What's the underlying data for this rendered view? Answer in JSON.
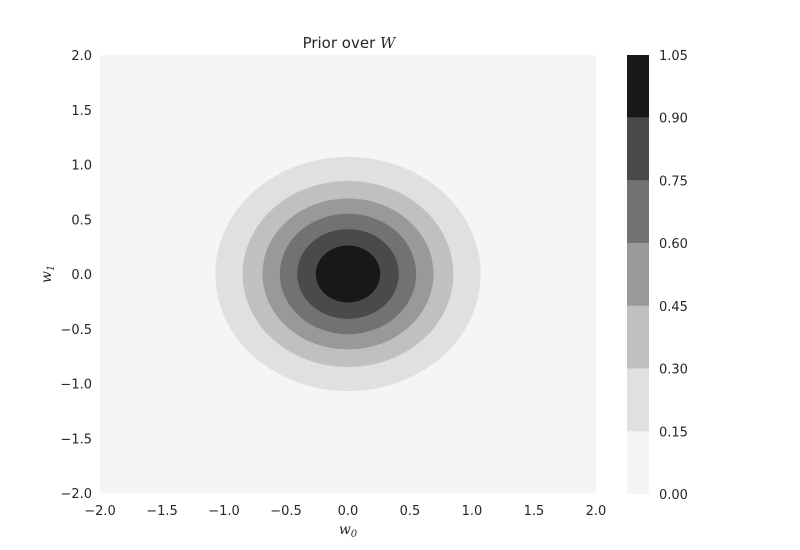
{
  "chart_data": {
    "type": "contourf",
    "title_text": "Prior over ",
    "title_math": "W",
    "xlabel": "w",
    "xlabel_sub": "0",
    "ylabel": "w",
    "ylabel_sub": "1",
    "xlim": [
      -2.0,
      2.0
    ],
    "ylim": [
      -2.0,
      2.0
    ],
    "x_ticks": [
      "−2.0",
      "−1.5",
      "−1.0",
      "−0.5",
      "0.0",
      "0.5",
      "1.0",
      "1.5",
      "2.0"
    ],
    "y_ticks": [
      "−2.0",
      "−1.5",
      "−1.0",
      "−0.5",
      "0.0",
      "0.5",
      "1.0",
      "1.5",
      "2.0"
    ],
    "x_tick_values": [
      -2.0,
      -1.5,
      -1.0,
      -0.5,
      0.0,
      0.5,
      1.0,
      1.5,
      2.0
    ],
    "y_tick_values": [
      -2.0,
      -1.5,
      -1.0,
      -0.5,
      0.0,
      0.5,
      1.0,
      1.5,
      2.0
    ],
    "contour_levels": [
      0.0,
      0.15,
      0.3,
      0.45,
      0.6,
      0.75,
      0.9,
      1.05
    ],
    "contour_colors": [
      "#f5f5f5",
      "#e0e0e0",
      "#c0c0c0",
      "#999999",
      "#727272",
      "#4a4a4a",
      "#181818"
    ],
    "contour_rings": [
      {
        "level": 0.15,
        "rx": 1.07,
        "ry": 1.07,
        "color": "#e0e0e0"
      },
      {
        "level": 0.3,
        "rx": 0.85,
        "ry": 0.85,
        "color": "#c0c0c0"
      },
      {
        "level": 0.45,
        "rx": 0.69,
        "ry": 0.69,
        "color": "#999999"
      },
      {
        "level": 0.6,
        "rx": 0.55,
        "ry": 0.55,
        "color": "#727272"
      },
      {
        "level": 0.75,
        "rx": 0.41,
        "ry": 0.41,
        "color": "#4a4a4a"
      },
      {
        "level": 0.9,
        "rx": 0.26,
        "ry": 0.26,
        "color": "#181818"
      }
    ],
    "colorbar_ticks": [
      "0.00",
      "0.15",
      "0.30",
      "0.45",
      "0.60",
      "0.75",
      "0.90",
      "1.05"
    ],
    "colorbar_tick_values": [
      0.0,
      0.15,
      0.3,
      0.45,
      0.6,
      0.75,
      0.9,
      1.05
    ],
    "grid": false,
    "colormap": "Greys"
  }
}
